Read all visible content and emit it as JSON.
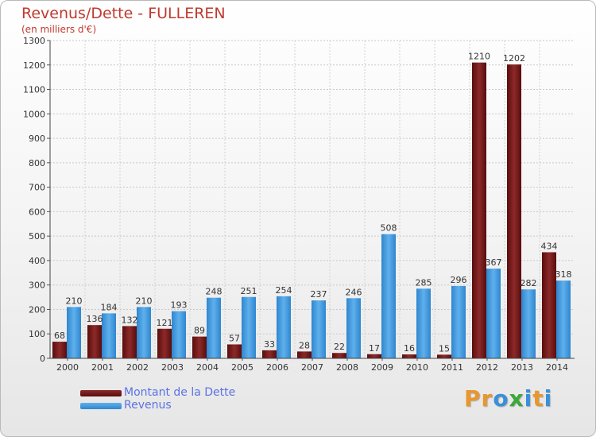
{
  "title": "Revenus/Dette - FULLEREN",
  "subtitle": "(en milliers d'€)",
  "colors": {
    "dette": "#7a1a1a",
    "revenus": "#4499dd",
    "title": "#bf3a2e",
    "legend_text": "#5a72e6"
  },
  "legend": {
    "items": [
      {
        "label": "Montant de la Dette",
        "color": "#7a1a1a"
      },
      {
        "label": "Revenus",
        "color": "#4499dd"
      }
    ]
  },
  "logo": {
    "letters": [
      {
        "ch": "P",
        "color": "#e8962e"
      },
      {
        "ch": "r",
        "color": "#e8962e"
      },
      {
        "ch": "o",
        "color": "#3a8fd8"
      },
      {
        "ch": "x",
        "color": "#3aa83a"
      },
      {
        "ch": "i",
        "color": "#3a8fd8"
      },
      {
        "ch": "t",
        "color": "#e8962e"
      },
      {
        "ch": "i",
        "color": "#3a8fd8"
      }
    ]
  },
  "chart_data": {
    "type": "bar",
    "categories": [
      "2000",
      "2001",
      "2002",
      "2003",
      "2004",
      "2005",
      "2006",
      "2007",
      "2008",
      "2009",
      "2010",
      "2011",
      "2012",
      "2013",
      "2014"
    ],
    "series": [
      {
        "name": "Montant de la Dette",
        "values": [
          68,
          136,
          132,
          121,
          89,
          57,
          33,
          28,
          22,
          17,
          16,
          15,
          1210,
          1202,
          434
        ]
      },
      {
        "name": "Revenus",
        "values": [
          210,
          184,
          210,
          193,
          248,
          251,
          254,
          237,
          246,
          508,
          285,
          296,
          367,
          282,
          318
        ]
      }
    ],
    "ylim": [
      0,
      1300
    ],
    "yticks": [
      0,
      100,
      200,
      300,
      400,
      500,
      600,
      700,
      800,
      900,
      1000,
      1100,
      1200,
      1300
    ],
    "grid": true,
    "legend_position": "bottom-left"
  }
}
